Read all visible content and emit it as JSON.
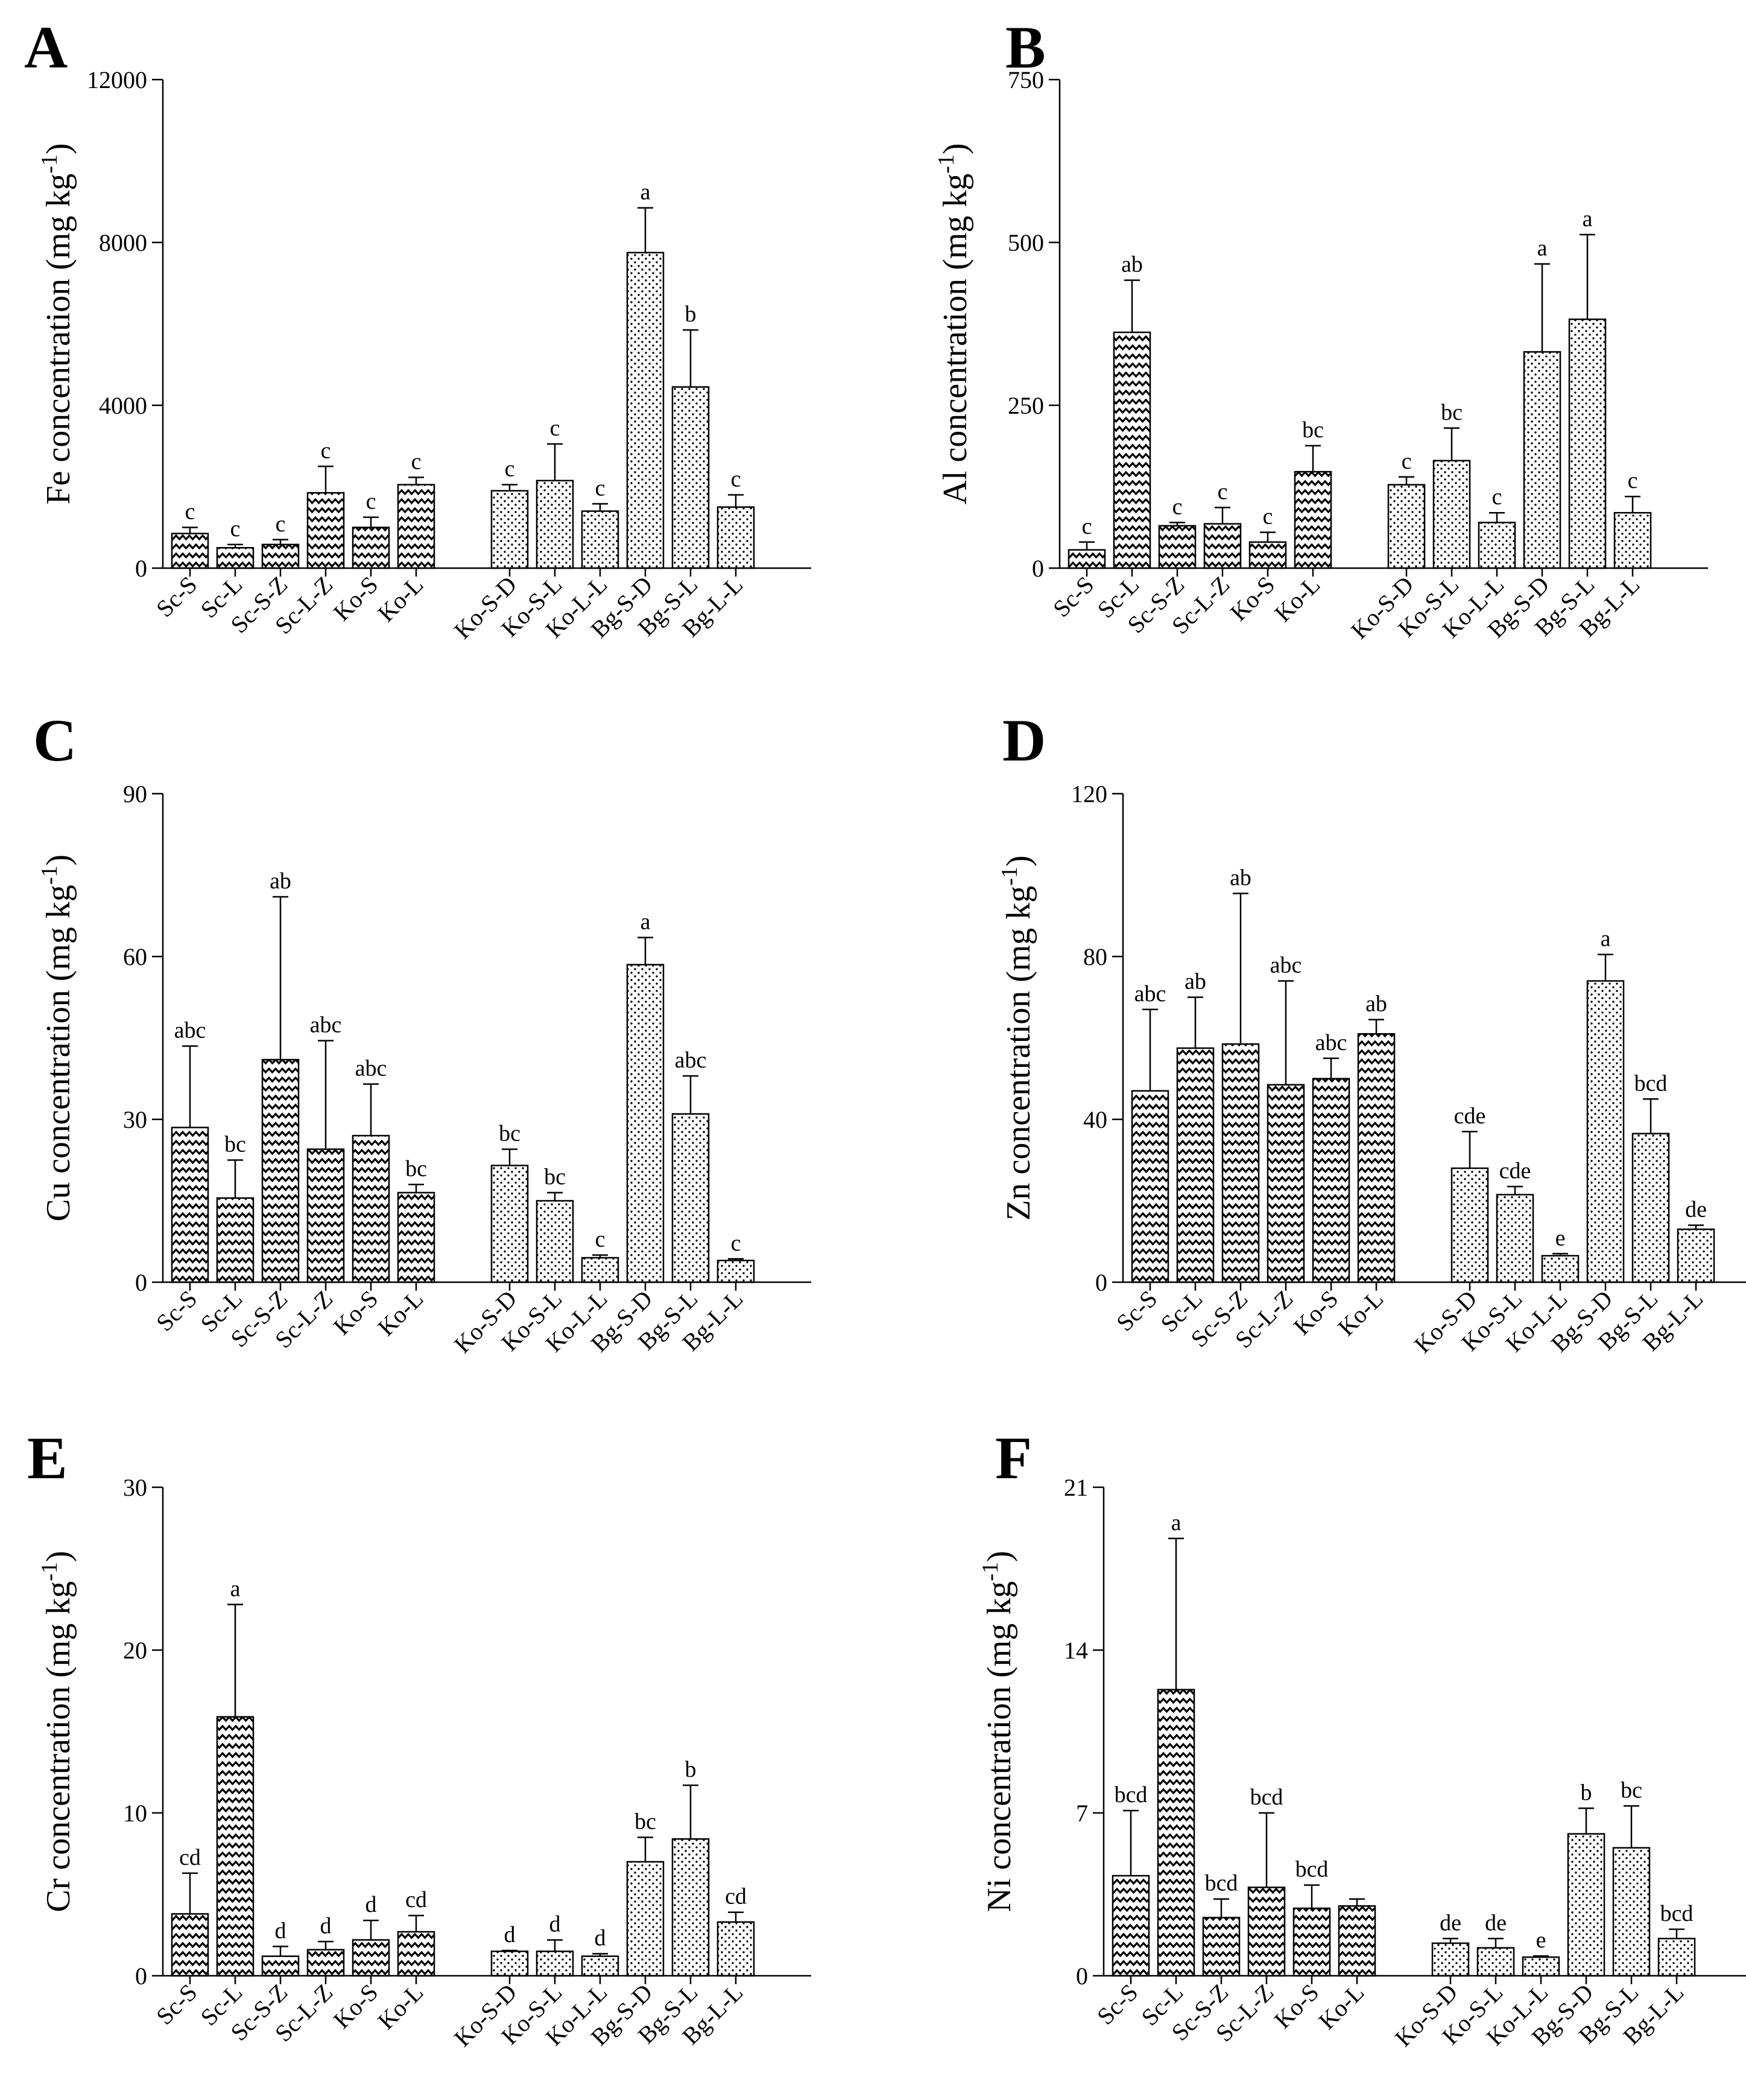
{
  "figure": {
    "panel_order": [
      "A",
      "B",
      "C",
      "D",
      "E",
      "F"
    ],
    "categories": [
      "Sc-S",
      "Sc-L",
      "Sc-S-Z",
      "Sc-L-Z",
      "Ko-S",
      "Ko-L",
      "Ko-S-D",
      "Ko-S-L",
      "Ko-L-L",
      "Bg-S-D",
      "Bg-S-L",
      "Bg-L-L"
    ],
    "group1_pattern": "zigzag",
    "group2_pattern": "dots"
  },
  "chart_data": [
    {
      "panel": "A",
      "type": "bar",
      "ylabel": "Fe concentration (mg kg-1)",
      "ylabel_main": "Fe concentration (mg kg",
      "ylabel_sup": "-1",
      "ylabel_end": ")",
      "ylim": [
        0,
        12000
      ],
      "yticks": [
        "0",
        "4000",
        "8000",
        "12000"
      ],
      "ytick_values": [
        0,
        4000,
        8000,
        12000
      ],
      "categories": [
        "Sc-S",
        "Sc-L",
        "Sc-S-Z",
        "Sc-L-Z",
        "Ko-S",
        "Ko-L",
        "Ko-S-D",
        "Ko-S-L",
        "Ko-L-L",
        "Bg-S-D",
        "Bg-S-L",
        "Bg-L-L"
      ],
      "values": [
        850,
        500,
        580,
        1850,
        1000,
        2050,
        1900,
        2150,
        1400,
        7750,
        4450,
        1500
      ],
      "errors": [
        150,
        80,
        120,
        650,
        250,
        180,
        150,
        900,
        180,
        1100,
        1400,
        300
      ],
      "letters": [
        "c",
        "c",
        "c",
        "c",
        "c",
        "c",
        "c",
        "c",
        "c",
        "a",
        "b",
        "c"
      ]
    },
    {
      "panel": "B",
      "type": "bar",
      "ylabel": "Al concentration (mg kg-1)",
      "ylabel_main": "Al concentration (mg kg",
      "ylabel_sup": "-1",
      "ylabel_end": ")",
      "ylim": [
        0,
        750
      ],
      "yticks": [
        "0",
        "250",
        "500",
        "750"
      ],
      "ytick_values": [
        0,
        250,
        500,
        750
      ],
      "categories": [
        "Sc-S",
        "Sc-L",
        "Sc-S-Z",
        "Sc-L-Z",
        "Ko-S",
        "Ko-L",
        "Ko-S-D",
        "Ko-S-L",
        "Ko-L-L",
        "Bg-S-D",
        "Bg-S-L",
        "Bg-L-L"
      ],
      "values": [
        28,
        362,
        65,
        68,
        40,
        148,
        128,
        165,
        70,
        332,
        382,
        85
      ],
      "errors": [
        12,
        80,
        5,
        25,
        15,
        40,
        12,
        50,
        15,
        135,
        130,
        25
      ],
      "letters": [
        "c",
        "ab",
        "c",
        "c",
        "c",
        "bc",
        "c",
        "bc",
        "c",
        "a",
        "a",
        "c"
      ]
    },
    {
      "panel": "C",
      "type": "bar",
      "ylabel": "Cu concentration (mg kg-1)",
      "ylabel_main": "Cu concentration (mg kg",
      "ylabel_sup": "-1",
      "ylabel_end": ")",
      "ylim": [
        0,
        90
      ],
      "yticks": [
        "0",
        "30",
        "60",
        "90"
      ],
      "ytick_values": [
        0,
        30,
        60,
        90
      ],
      "categories": [
        "Sc-S",
        "Sc-L",
        "Sc-S-Z",
        "Sc-L-Z",
        "Ko-S",
        "Ko-L",
        "Ko-S-D",
        "Ko-S-L",
        "Ko-L-L",
        "Bg-S-D",
        "Bg-S-L",
        "Bg-L-L"
      ],
      "values": [
        28.5,
        15.5,
        41,
        24.5,
        27,
        16.5,
        21.5,
        15,
        4.5,
        58.5,
        31,
        4
      ],
      "errors": [
        15,
        7,
        30,
        20,
        9.5,
        1.5,
        3,
        1.5,
        0.5,
        5,
        7,
        0.3
      ],
      "letters": [
        "abc",
        "bc",
        "ab",
        "abc",
        "abc",
        "bc",
        "bc",
        "bc",
        "c",
        "a",
        "abc",
        "c"
      ]
    },
    {
      "panel": "D",
      "type": "bar",
      "ylabel": "Zn concentration (mg kg-1)",
      "ylabel_main": "Zn concentration (mg kg",
      "ylabel_sup": "-1",
      "ylabel_end": ")",
      "ylim": [
        0,
        120
      ],
      "yticks": [
        "0",
        "40",
        "80",
        "120"
      ],
      "ytick_values": [
        0,
        40,
        80,
        120
      ],
      "categories": [
        "Sc-S",
        "Sc-L",
        "Sc-S-Z",
        "Sc-L-Z",
        "Ko-S",
        "Ko-L",
        "Ko-S-D",
        "Ko-S-L",
        "Ko-L-L",
        "Bg-S-D",
        "Bg-S-L",
        "Bg-L-L"
      ],
      "values": [
        47,
        57.5,
        58.5,
        48.5,
        50,
        61,
        28,
        21.5,
        6.5,
        74,
        36.5,
        13
      ],
      "errors": [
        20,
        12.5,
        37,
        25.5,
        5,
        3.5,
        9,
        2,
        0.5,
        6.5,
        8.5,
        1
      ],
      "letters": [
        "abc",
        "ab",
        "ab",
        "abc",
        "abc",
        "ab",
        "cde",
        "cde",
        "e",
        "a",
        "bcd",
        "de"
      ]
    },
    {
      "panel": "E",
      "type": "bar",
      "ylabel": "Cr concentration (mg kg-1)",
      "ylabel_main": "Cr concentration (mg kg",
      "ylabel_sup": "-1",
      "ylabel_end": ")",
      "ylim": [
        0,
        30
      ],
      "yticks": [
        "0",
        "10",
        "20",
        "30"
      ],
      "ytick_values": [
        0,
        10,
        20,
        30
      ],
      "categories": [
        "Sc-S",
        "Sc-L",
        "Sc-S-Z",
        "Sc-L-Z",
        "Ko-S",
        "Ko-L",
        "Ko-S-D",
        "Ko-S-L",
        "Ko-L-L",
        "Bg-S-D",
        "Bg-S-L",
        "Bg-L-L"
      ],
      "values": [
        3.8,
        15.9,
        1.2,
        1.6,
        2.2,
        2.7,
        1.5,
        1.5,
        1.2,
        7,
        8.4,
        3.3
      ],
      "errors": [
        2.5,
        6.9,
        0.6,
        0.5,
        1.2,
        1,
        0.05,
        0.7,
        0.15,
        1.5,
        3.3,
        0.6
      ],
      "letters": [
        "cd",
        "a",
        "d",
        "d",
        "d",
        "cd",
        "d",
        "d",
        "d",
        "bc",
        "b",
        "cd"
      ]
    },
    {
      "panel": "F",
      "type": "bar",
      "ylabel": "Ni concentration (mg kg-1)",
      "ylabel_main": "Ni concentration (mg kg",
      "ylabel_sup": "-1",
      "ylabel_end": ")",
      "ylim": [
        0,
        21
      ],
      "yticks": [
        "0",
        "7",
        "14",
        "21"
      ],
      "ytick_values": [
        0,
        7,
        14,
        21
      ],
      "categories": [
        "Sc-S",
        "Sc-L",
        "Sc-S-Z",
        "Sc-L-Z",
        "Ko-S",
        "Ko-L",
        "Ko-S-D",
        "Ko-S-L",
        "Ko-L-L",
        "Bg-S-D",
        "Bg-S-L",
        "Bg-L-L"
      ],
      "values": [
        4.3,
        12.3,
        2.5,
        3.8,
        2.9,
        3,
        1.4,
        1.2,
        0.8,
        6.1,
        5.5,
        1.6
      ],
      "errors": [
        2.8,
        6.5,
        0.8,
        3.2,
        1,
        0.3,
        0.2,
        0.4,
        0.05,
        1.1,
        1.8,
        0.4
      ],
      "letters": [
        "bcd",
        "a",
        "bcd",
        "bcd",
        "bcd",
        "",
        "de",
        "de",
        "e",
        "b",
        "bc",
        "bcd"
      ]
    }
  ]
}
